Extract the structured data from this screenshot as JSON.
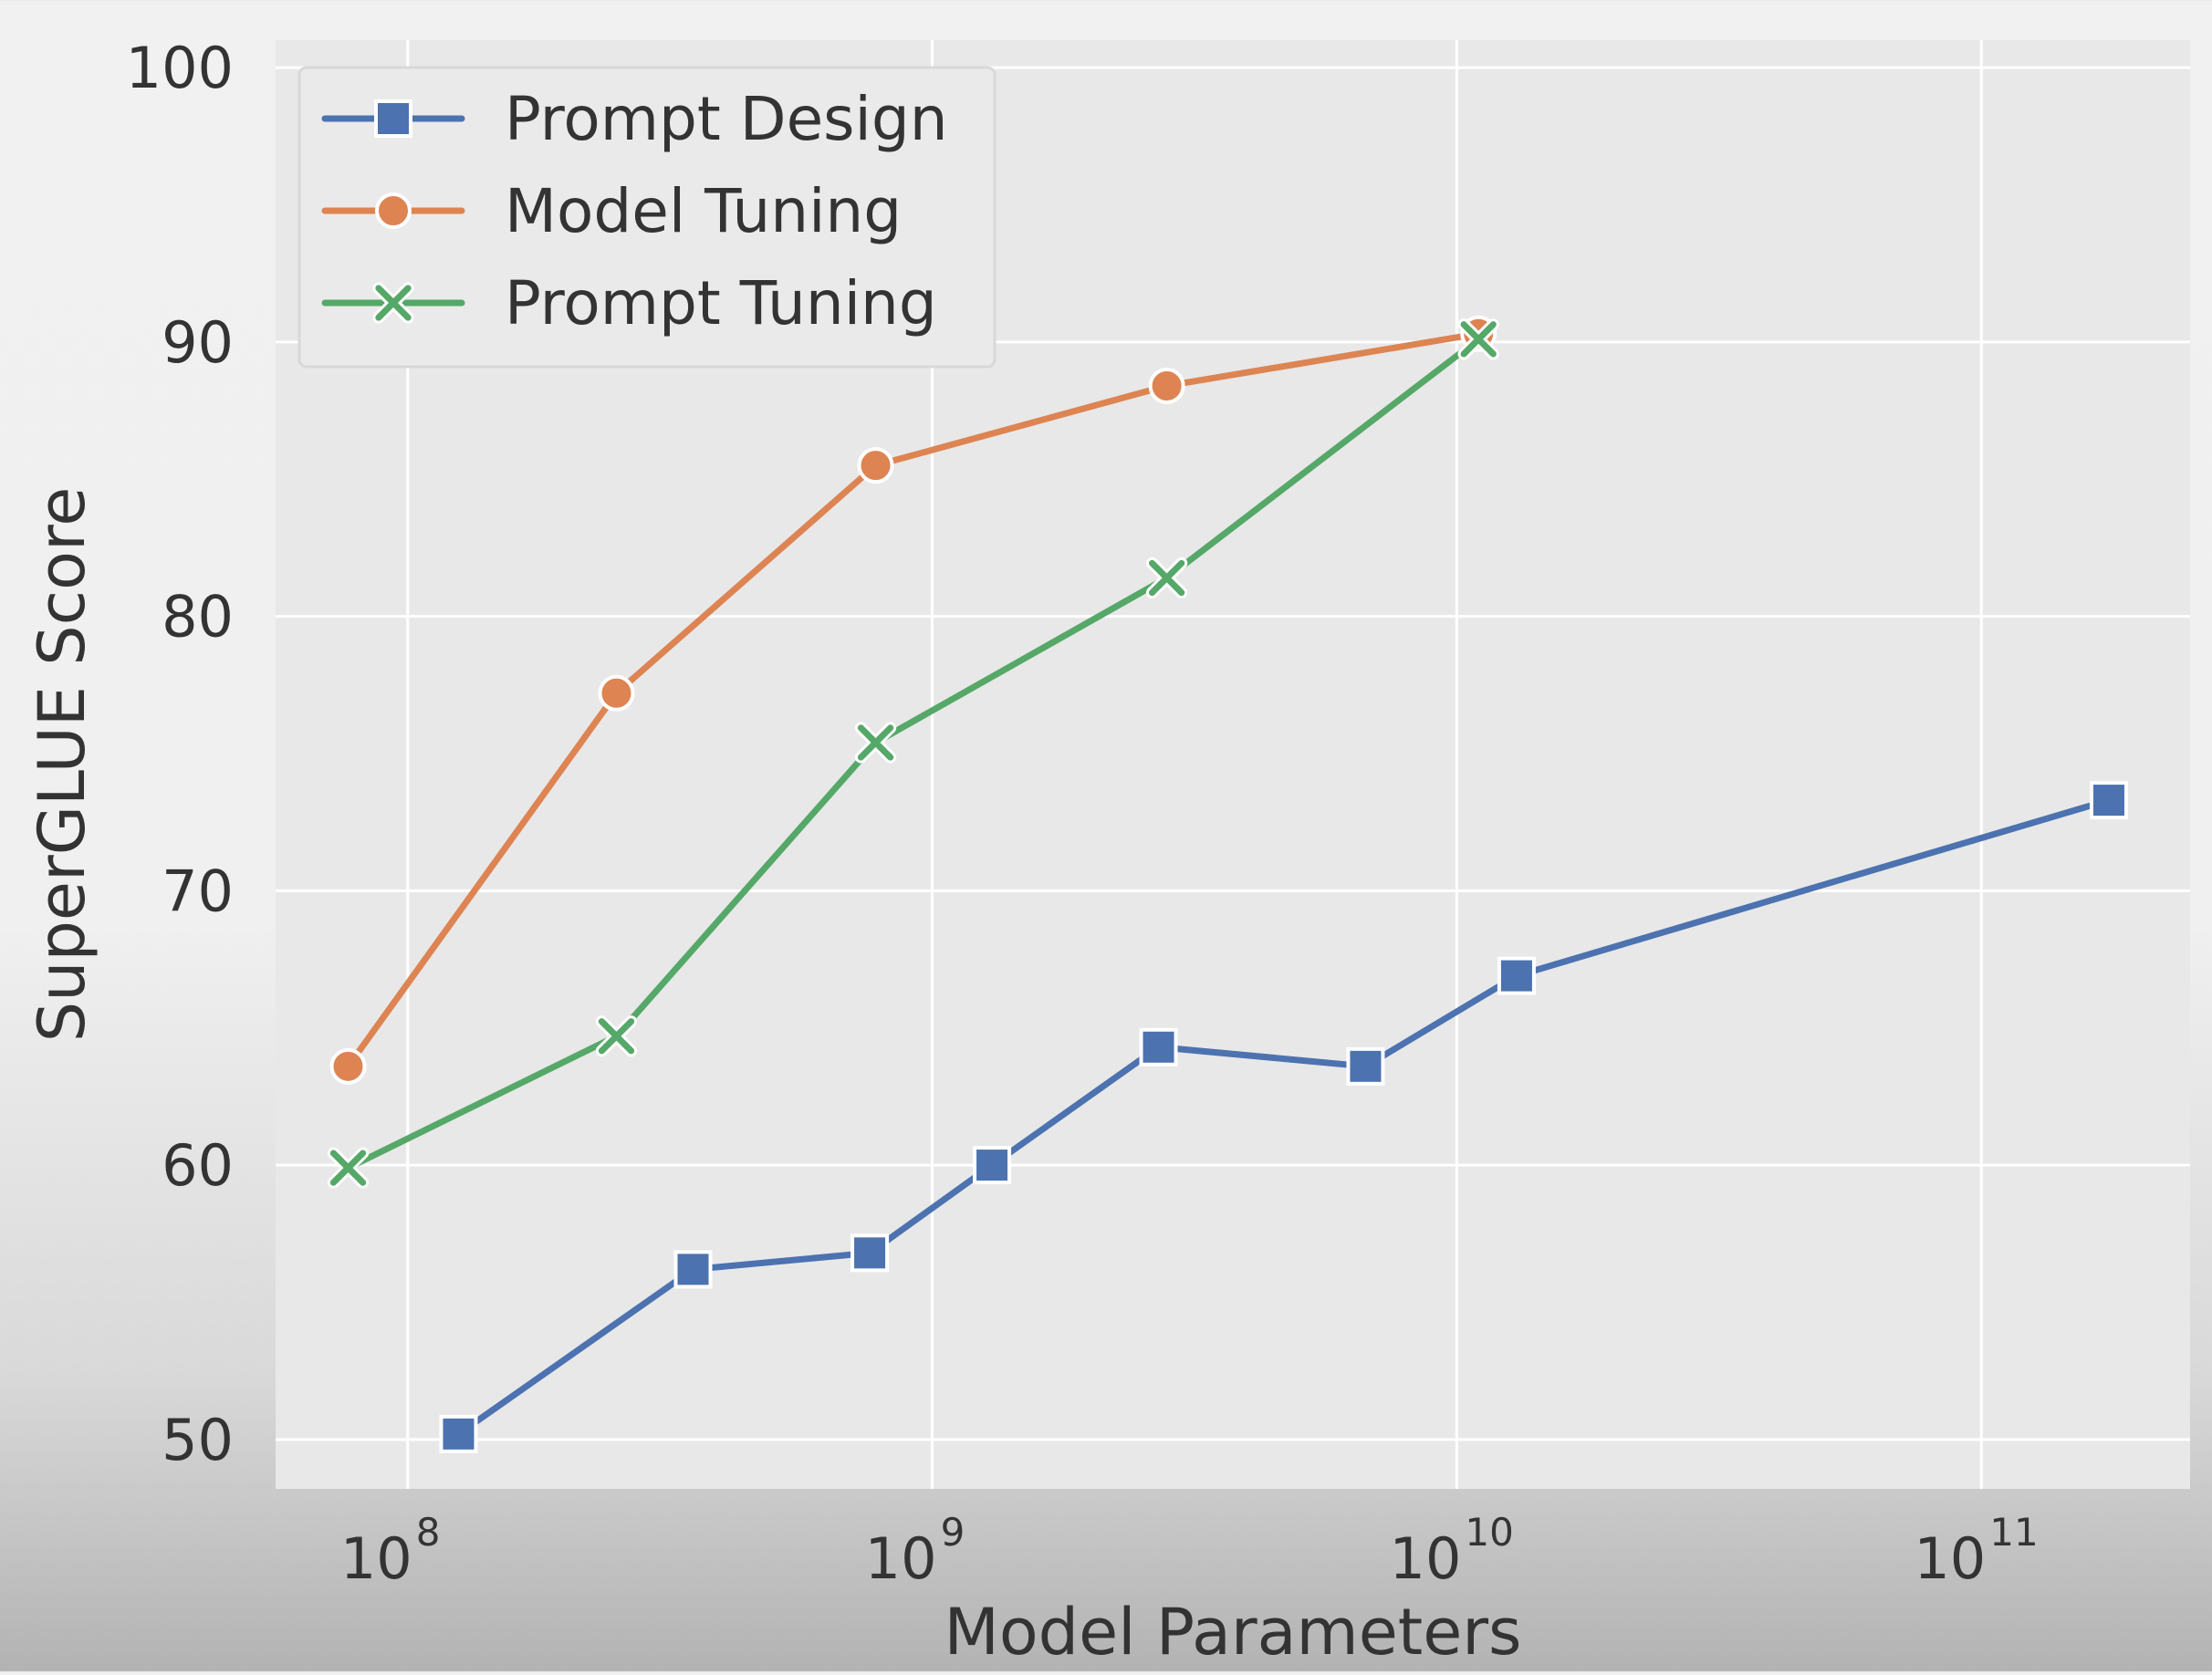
{
  "chart_data": {
    "type": "line",
    "title": "",
    "xlabel": "Model Parameters",
    "ylabel": "SuperGLUE Score",
    "xscale": "log",
    "xlim": [
      56000000,
      250000000000
    ],
    "ylim": [
      48.2,
      101
    ],
    "grid": true,
    "legend_position": "top-left",
    "x_ticks": [
      {
        "value": 100000000,
        "base": "10",
        "exp": "8"
      },
      {
        "value": 1000000000,
        "base": "10",
        "exp": "9"
      },
      {
        "value": 10000000000,
        "base": "10",
        "exp": "10"
      },
      {
        "value": 100000000000,
        "base": "10",
        "exp": "11"
      }
    ],
    "y_ticks": [
      {
        "value": 50,
        "label": "50"
      },
      {
        "value": 60,
        "label": "60"
      },
      {
        "value": 70,
        "label": "70"
      },
      {
        "value": 80,
        "label": "80"
      },
      {
        "value": 90,
        "label": "90"
      },
      {
        "value": 100,
        "label": "100"
      }
    ],
    "series": [
      {
        "name": "Prompt Design",
        "color": "#4c72b0",
        "marker": "square",
        "x": [
          125000000,
          350000000,
          760000000,
          1300000000,
          2700000000,
          6700000000,
          13000000000,
          175000000000
        ],
        "values": [
          50.2,
          56.2,
          56.8,
          60.0,
          64.3,
          63.6,
          66.9,
          73.3
        ]
      },
      {
        "name": "Model Tuning",
        "color": "#dd8452",
        "marker": "circle",
        "x": [
          77000000,
          250000000,
          780000000,
          2800000000,
          11000000000
        ],
        "values": [
          63.6,
          77.2,
          85.5,
          88.4,
          90.3
        ]
      },
      {
        "name": "Prompt Tuning",
        "color": "#55a868",
        "marker": "x",
        "x": [
          77000000,
          250000000,
          780000000,
          2800000000,
          11000000000
        ],
        "values": [
          59.9,
          64.7,
          75.4,
          81.4,
          90.1
        ]
      }
    ]
  }
}
